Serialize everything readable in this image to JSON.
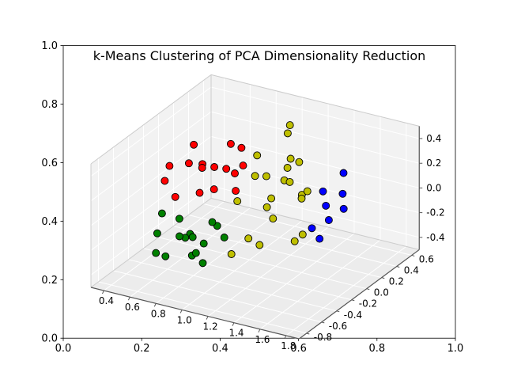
{
  "figure": {
    "title": "k-Means Clustering of PCA Dimensionality Reduction"
  },
  "chart_data": {
    "type": "scatter",
    "projection": "3d",
    "title": "k-Means Clustering of PCA Dimensionality Reduction",
    "view": {
      "elev": 30,
      "azim": -60
    },
    "legend": "none",
    "outer_axes": {
      "xticks": [
        "0.0",
        "0.2",
        "0.4",
        "0.6",
        "0.8",
        "1.0"
      ],
      "yticks": [
        "0.0",
        "0.2",
        "0.4",
        "0.6",
        "0.8",
        "1.0"
      ]
    },
    "axes3d": {
      "xlim": [
        0.3,
        1.9
      ],
      "ylim": [
        -0.9,
        0.7
      ],
      "zlim": [
        -0.5,
        0.5
      ],
      "xticks": [
        "0.4",
        "0.6",
        "0.8",
        "1.0",
        "1.2",
        "1.4",
        "1.6",
        "1.8"
      ],
      "yticks": [
        "-0.8",
        "-0.6",
        "-0.4",
        "-0.2",
        "0.0",
        "0.2",
        "0.4",
        "0.6"
      ],
      "zticks": [
        "-0.4",
        "-0.2",
        "0.0",
        "0.2",
        "0.4"
      ],
      "pane_color": "#f2f2f2",
      "floor_color": "#ececec",
      "grid_color": "#ffffff",
      "edge_color": "#cccccc",
      "axisline_color": "#555555"
    },
    "marker": {
      "size": 4.5,
      "edge_color": "#000000"
    },
    "series": [
      {
        "name": "cluster-red",
        "color": "#ff0000",
        "points": [
          [
            0.55,
            -0.35,
            0.18
          ],
          [
            0.62,
            -0.15,
            0.25
          ],
          [
            0.7,
            0.05,
            0.15
          ],
          [
            0.78,
            -0.25,
            0.3
          ],
          [
            0.85,
            -0.05,
            0.22
          ],
          [
            0.58,
            0.1,
            0.12
          ],
          [
            0.66,
            -0.4,
            0.1
          ],
          [
            0.74,
            0.2,
            0.28
          ],
          [
            0.9,
            -0.3,
            0.18
          ],
          [
            0.95,
            0.0,
            0.25
          ],
          [
            0.8,
            0.15,
            0.08
          ],
          [
            0.6,
            -0.05,
            0.35
          ],
          [
            0.72,
            -0.18,
            0.05
          ],
          [
            0.88,
            0.1,
            0.33
          ],
          [
            0.5,
            -0.2,
            0.22
          ],
          [
            0.98,
            -0.15,
            0.12
          ]
        ]
      },
      {
        "name": "cluster-green",
        "color": "#008000",
        "points": [
          [
            0.55,
            -0.45,
            -0.2
          ],
          [
            0.65,
            -0.25,
            -0.3
          ],
          [
            0.75,
            -0.5,
            -0.15
          ],
          [
            0.85,
            -0.35,
            -0.25
          ],
          [
            0.6,
            -0.1,
            -0.35
          ],
          [
            0.7,
            -0.6,
            -0.28
          ],
          [
            0.8,
            -0.15,
            -0.18
          ],
          [
            0.9,
            -0.45,
            -0.35
          ],
          [
            0.5,
            -0.3,
            -0.12
          ],
          [
            0.95,
            -0.25,
            -0.22
          ],
          [
            0.68,
            -0.38,
            -0.08
          ],
          [
            0.78,
            -0.05,
            -0.26
          ],
          [
            0.88,
            -0.55,
            -0.1
          ],
          [
            0.58,
            -0.52,
            -0.32
          ],
          [
            0.73,
            -0.3,
            -0.4
          ],
          [
            0.83,
            -0.42,
            -0.3
          ]
        ]
      },
      {
        "name": "cluster-yellow",
        "color": "#bfbf00",
        "points": [
          [
            1.05,
            0.45,
            0.4
          ],
          [
            1.12,
            0.3,
            0.42
          ],
          [
            1.0,
            0.1,
            0.3
          ],
          [
            1.1,
            -0.1,
            0.25
          ],
          [
            1.2,
            0.2,
            0.28
          ],
          [
            1.28,
            0.05,
            0.18
          ],
          [
            1.15,
            0.4,
            0.15
          ],
          [
            1.05,
            -0.25,
            0.1
          ],
          [
            1.22,
            -0.15,
            0.05
          ],
          [
            1.3,
            0.25,
            0.02
          ],
          [
            1.08,
            0.15,
            -0.05
          ],
          [
            1.18,
            0.0,
            -0.12
          ],
          [
            1.25,
            -0.3,
            -0.18
          ],
          [
            1.12,
            -0.45,
            -0.22
          ],
          [
            1.35,
            0.1,
            -0.25
          ],
          [
            1.02,
            -0.05,
            -0.3
          ],
          [
            1.2,
            0.35,
            -0.08
          ],
          [
            1.32,
            -0.05,
            0.35
          ],
          [
            1.14,
            0.22,
            0.08
          ],
          [
            1.26,
            0.15,
            -0.35
          ],
          [
            1.4,
            0.0,
            0.1
          ],
          [
            1.1,
            0.05,
            0.18
          ]
        ]
      },
      {
        "name": "cluster-blue",
        "color": "#0000ff",
        "points": [
          [
            1.42,
            0.25,
            0.05
          ],
          [
            1.5,
            0.15,
            0.0
          ],
          [
            1.55,
            0.3,
            -0.08
          ],
          [
            1.45,
            0.05,
            -0.15
          ],
          [
            1.6,
            0.2,
            0.1
          ],
          [
            1.52,
            0.35,
            0.18
          ],
          [
            1.48,
            0.1,
            -0.25
          ],
          [
            1.58,
            0.05,
            -0.05
          ]
        ]
      }
    ]
  }
}
